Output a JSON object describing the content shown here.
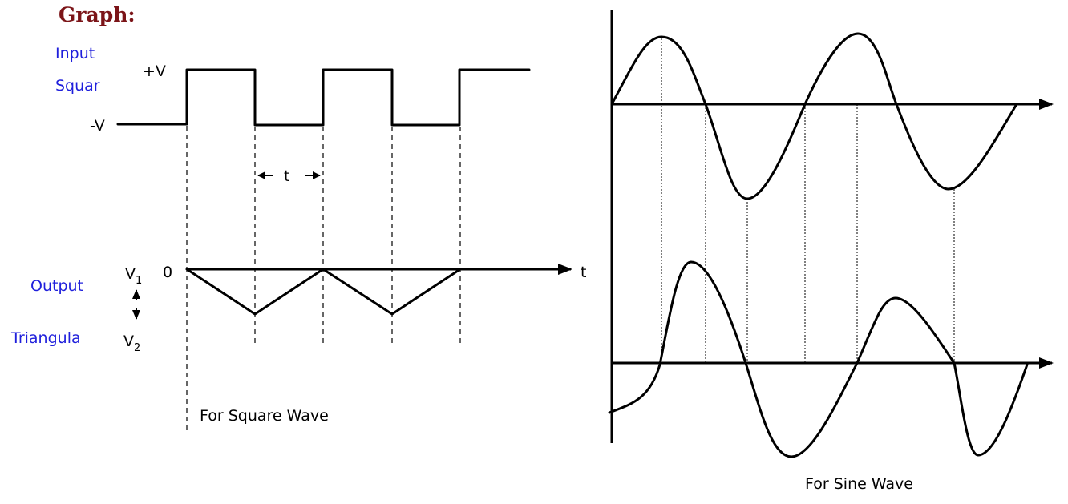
{
  "header": {
    "title": "Graph:"
  },
  "square_panel": {
    "input_label_line1": "Input",
    "input_label_line2": "Squar",
    "level_high": "+V",
    "level_low": "-V",
    "period_label": "t",
    "output_label": "Output",
    "triangle_label": "Triangula",
    "v1_base": "V",
    "v1_sub": "1",
    "v2_base": "V",
    "v2_sub": "2",
    "zero_label": "0",
    "time_axis_label": "t",
    "caption": "For Square Wave"
  },
  "sine_panel": {
    "caption": "For Sine Wave"
  }
}
